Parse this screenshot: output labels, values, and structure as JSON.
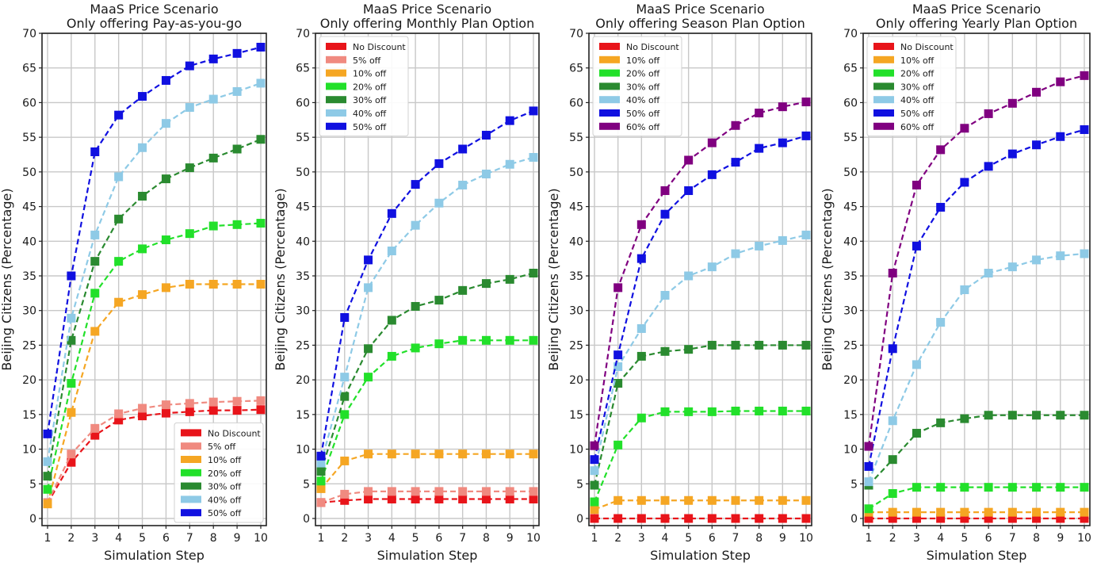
{
  "figure": {
    "ylabel": "Beijing Citizens (Percentage)",
    "xlabel": "Simulation Step"
  },
  "colors": {
    "No Discount": "#e8141a",
    "5% off": "#f08a80",
    "10% off": "#f5a623",
    "20% off": "#22e02a",
    "30% off": "#2a8a30",
    "40% off": "#8ecae6",
    "50% off": "#1010e0",
    "60% off": "#800080"
  },
  "chart_data": [
    {
      "type": "line",
      "title": "MaaS Price Scenario\nOnly offering Pay-as-you-go",
      "title_lines": [
        "MaaS Price Scenario",
        "Only offering Pay-as-you-go"
      ],
      "xlabel": "Simulation Step",
      "ylabel": "Beijing Citizens (Percentage)",
      "x": [
        1,
        2,
        3,
        4,
        5,
        6,
        7,
        8,
        9,
        10
      ],
      "ylim": [
        0,
        70
      ],
      "yticks": [
        0,
        5,
        10,
        15,
        20,
        25,
        30,
        35,
        40,
        45,
        50,
        55,
        60,
        65,
        70
      ],
      "grid": true,
      "legend_position": "lower right",
      "series": [
        {
          "name": "No Discount",
          "values": [
            2.2,
            8.1,
            12.0,
            14.2,
            14.8,
            15.2,
            15.4,
            15.6,
            15.6,
            15.7
          ]
        },
        {
          "name": "5% off",
          "values": [
            2.3,
            9.3,
            13.0,
            15.1,
            15.9,
            16.4,
            16.6,
            16.8,
            16.9,
            17.0
          ]
        },
        {
          "name": "10% off",
          "values": [
            2.1,
            15.3,
            27.0,
            31.2,
            32.3,
            33.3,
            33.8,
            33.8,
            33.8,
            33.8
          ]
        },
        {
          "name": "20% off",
          "values": [
            4.2,
            19.5,
            32.5,
            37.1,
            38.9,
            40.2,
            41.1,
            42.2,
            42.4,
            42.6
          ]
        },
        {
          "name": "30% off",
          "values": [
            6.1,
            25.7,
            37.1,
            43.2,
            46.5,
            49.0,
            50.6,
            52.0,
            53.3,
            54.7
          ]
        },
        {
          "name": "40% off",
          "values": [
            8.2,
            28.9,
            40.9,
            49.3,
            53.5,
            57.0,
            59.3,
            60.5,
            61.6,
            62.8
          ]
        },
        {
          "name": "50% off",
          "values": [
            12.2,
            35.0,
            52.9,
            58.2,
            60.9,
            63.2,
            65.3,
            66.3,
            67.1,
            68.0
          ]
        }
      ]
    },
    {
      "type": "line",
      "title": "MaaS Price Scenario\nOnly offering Monthly Plan Option",
      "title_lines": [
        "MaaS Price Scenario",
        "Only offering Monthly Plan Option"
      ],
      "xlabel": "Simulation Step",
      "ylabel": "Beijing Citizens (Percentage)",
      "x": [
        1,
        2,
        3,
        4,
        5,
        6,
        7,
        8,
        9,
        10
      ],
      "ylim": [
        0,
        70
      ],
      "yticks": [
        0,
        5,
        10,
        15,
        20,
        25,
        30,
        35,
        40,
        45,
        50,
        55,
        60,
        65,
        70
      ],
      "grid": true,
      "legend_position": "upper left",
      "series": [
        {
          "name": "No Discount",
          "values": [
            2.3,
            2.6,
            2.8,
            2.8,
            2.8,
            2.8,
            2.8,
            2.8,
            2.8,
            2.8
          ]
        },
        {
          "name": "5% off",
          "values": [
            2.3,
            3.5,
            3.9,
            3.9,
            3.9,
            3.9,
            3.9,
            3.9,
            3.9,
            3.9
          ]
        },
        {
          "name": "10% off",
          "values": [
            4.3,
            8.3,
            9.3,
            9.3,
            9.3,
            9.3,
            9.3,
            9.3,
            9.3,
            9.3
          ]
        },
        {
          "name": "20% off",
          "values": [
            5.4,
            15.0,
            20.4,
            23.4,
            24.6,
            25.2,
            25.7,
            25.7,
            25.7,
            25.7
          ]
        },
        {
          "name": "30% off",
          "values": [
            6.8,
            17.6,
            24.5,
            28.6,
            30.6,
            31.5,
            32.9,
            33.9,
            34.5,
            35.4
          ]
        },
        {
          "name": "40% off",
          "values": [
            8.0,
            20.4,
            33.3,
            38.6,
            42.3,
            45.5,
            48.1,
            49.7,
            51.1,
            52.1
          ]
        },
        {
          "name": "50% off",
          "values": [
            9.0,
            29.0,
            37.3,
            44.0,
            48.2,
            51.2,
            53.3,
            55.3,
            57.4,
            58.8
          ]
        }
      ]
    },
    {
      "type": "line",
      "title": "MaaS Price Scenario\nOnly offering Season Plan Option",
      "title_lines": [
        "MaaS Price Scenario",
        "Only offering Season Plan Option"
      ],
      "xlabel": "Simulation Step",
      "ylabel": "Beijing Citizens (Percentage)",
      "x": [
        1,
        2,
        3,
        4,
        5,
        6,
        7,
        8,
        9,
        10
      ],
      "ylim": [
        0,
        70
      ],
      "yticks": [
        0,
        5,
        10,
        15,
        20,
        25,
        30,
        35,
        40,
        45,
        50,
        55,
        60,
        65,
        70
      ],
      "grid": true,
      "legend_position": "upper left",
      "series": [
        {
          "name": "No Discount",
          "values": [
            0.0,
            0.0,
            0.0,
            0.0,
            0.0,
            0.0,
            0.0,
            0.0,
            0.0,
            0.0
          ]
        },
        {
          "name": "10% off",
          "values": [
            1.3,
            2.6,
            2.6,
            2.6,
            2.6,
            2.6,
            2.6,
            2.6,
            2.6,
            2.6
          ]
        },
        {
          "name": "20% off",
          "values": [
            2.4,
            10.6,
            14.5,
            15.4,
            15.4,
            15.4,
            15.5,
            15.5,
            15.5,
            15.5
          ]
        },
        {
          "name": "30% off",
          "values": [
            4.8,
            19.5,
            23.4,
            24.1,
            24.4,
            25.0,
            25.0,
            25.0,
            25.0,
            25.0
          ]
        },
        {
          "name": "40% off",
          "values": [
            6.9,
            21.9,
            27.4,
            32.2,
            35.0,
            36.3,
            38.2,
            39.3,
            40.1,
            40.9
          ]
        },
        {
          "name": "50% off",
          "values": [
            8.5,
            23.6,
            37.5,
            43.9,
            47.3,
            49.6,
            51.4,
            53.4,
            54.2,
            55.2
          ]
        },
        {
          "name": "60% off",
          "values": [
            10.5,
            33.3,
            42.4,
            47.3,
            51.7,
            54.2,
            56.7,
            58.5,
            59.4,
            60.1
          ]
        }
      ]
    },
    {
      "type": "line",
      "title": "MaaS Price Scenario\nOnly offering Yearly Plan Option",
      "title_lines": [
        "MaaS Price Scenario",
        "Only offering Yearly Plan Option"
      ],
      "xlabel": "Simulation Step",
      "ylabel": "Beijing Citizens (Percentage)",
      "x": [
        1,
        2,
        3,
        4,
        5,
        6,
        7,
        8,
        9,
        10
      ],
      "ylim": [
        0,
        70
      ],
      "yticks": [
        0,
        5,
        10,
        15,
        20,
        25,
        30,
        35,
        40,
        45,
        50,
        55,
        60,
        65,
        70
      ],
      "grid": true,
      "legend_position": "upper left",
      "series": [
        {
          "name": "No Discount",
          "values": [
            0.0,
            0.0,
            0.0,
            0.0,
            0.0,
            0.0,
            0.0,
            0.0,
            0.0,
            0.0
          ]
        },
        {
          "name": "10% off",
          "values": [
            0.9,
            0.9,
            0.9,
            0.9,
            0.9,
            0.9,
            0.9,
            0.9,
            0.9,
            0.9
          ]
        },
        {
          "name": "20% off",
          "values": [
            1.4,
            3.6,
            4.5,
            4.5,
            4.5,
            4.5,
            4.5,
            4.5,
            4.5,
            4.5
          ]
        },
        {
          "name": "30% off",
          "values": [
            4.8,
            8.5,
            12.3,
            13.8,
            14.4,
            14.9,
            14.9,
            14.9,
            14.9,
            14.9
          ]
        },
        {
          "name": "40% off",
          "values": [
            5.3,
            14.1,
            22.2,
            28.3,
            33.0,
            35.4,
            36.3,
            37.3,
            37.9,
            38.2
          ]
        },
        {
          "name": "50% off",
          "values": [
            7.5,
            24.5,
            39.3,
            44.9,
            48.5,
            50.8,
            52.6,
            53.9,
            55.1,
            56.1
          ]
        },
        {
          "name": "60% off",
          "values": [
            10.4,
            35.4,
            48.1,
            53.2,
            56.3,
            58.4,
            59.9,
            61.5,
            63.0,
            63.9
          ]
        }
      ]
    }
  ]
}
